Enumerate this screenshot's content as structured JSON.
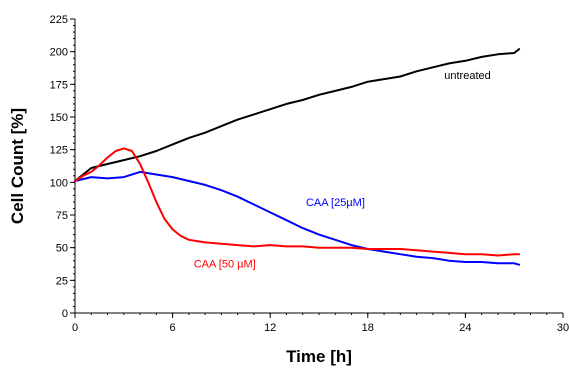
{
  "chart_data": {
    "type": "line",
    "title": "",
    "xlabel": "Time [h]",
    "ylabel": "Cell Count [%]",
    "xlim": [
      0,
      30
    ],
    "ylim": [
      0,
      225
    ],
    "xticks": [
      0,
      6,
      12,
      18,
      24,
      30
    ],
    "yticks": [
      0,
      25,
      50,
      75,
      100,
      125,
      150,
      175,
      200,
      225
    ],
    "grid": false,
    "legend": "inline labels",
    "series": [
      {
        "name": "untreated",
        "color": "#000000",
        "x": [
          0,
          1,
          2,
          3,
          4,
          5,
          6,
          7,
          8,
          9,
          10,
          11,
          12,
          13,
          14,
          15,
          16,
          17,
          18,
          19,
          20,
          21,
          22,
          23,
          24,
          25,
          26,
          27,
          27.3
        ],
        "y": [
          101,
          111,
          114,
          117,
          120,
          124,
          129,
          134,
          138,
          143,
          148,
          152,
          156,
          160,
          163,
          167,
          170,
          173,
          177,
          179,
          181,
          185,
          188,
          191,
          193,
          196,
          198,
          199,
          202
        ]
      },
      {
        "name": "CAA [25µM]",
        "color": "#0000ff",
        "x": [
          0,
          1,
          2,
          3,
          4,
          5,
          6,
          7,
          8,
          9,
          10,
          11,
          12,
          13,
          14,
          15,
          16,
          17,
          18,
          19,
          20,
          21,
          22,
          23,
          24,
          25,
          26,
          27,
          27.3
        ],
        "y": [
          101,
          104,
          103,
          104,
          108,
          106,
          104,
          101,
          98,
          94,
          89,
          83,
          77,
          71,
          65,
          60,
          56,
          52,
          49,
          47,
          45,
          43,
          42,
          40,
          39,
          39,
          38,
          38,
          37
        ]
      },
      {
        "name": "CAA [50 µM]",
        "color": "#ff0000",
        "x": [
          0,
          0.5,
          1,
          1.5,
          2,
          2.5,
          3,
          3.5,
          4,
          4.5,
          5,
          5.5,
          6,
          6.5,
          7,
          7.5,
          8,
          9,
          10,
          11,
          12,
          13,
          14,
          15,
          16,
          17,
          18,
          19,
          20,
          21,
          22,
          23,
          24,
          25,
          26,
          27,
          27.3
        ],
        "y": [
          101,
          105,
          108,
          113,
          119,
          124,
          126,
          124,
          114,
          100,
          85,
          72,
          64,
          59,
          56,
          55,
          54,
          53,
          52,
          51,
          52,
          51,
          51,
          50,
          50,
          50,
          49,
          49,
          49,
          48,
          47,
          46,
          45,
          45,
          44,
          45,
          45
        ]
      }
    ],
    "annotations": [
      {
        "text": "untreated",
        "x": 22.7,
        "y": 179,
        "color": "#000000"
      },
      {
        "text": "CAA [25µM]",
        "x": 14.2,
        "y": 82,
        "color": "#0000ff"
      },
      {
        "text": "CAA [50 µM]",
        "x": 7.3,
        "y": 35,
        "color": "#ff0000"
      }
    ]
  }
}
